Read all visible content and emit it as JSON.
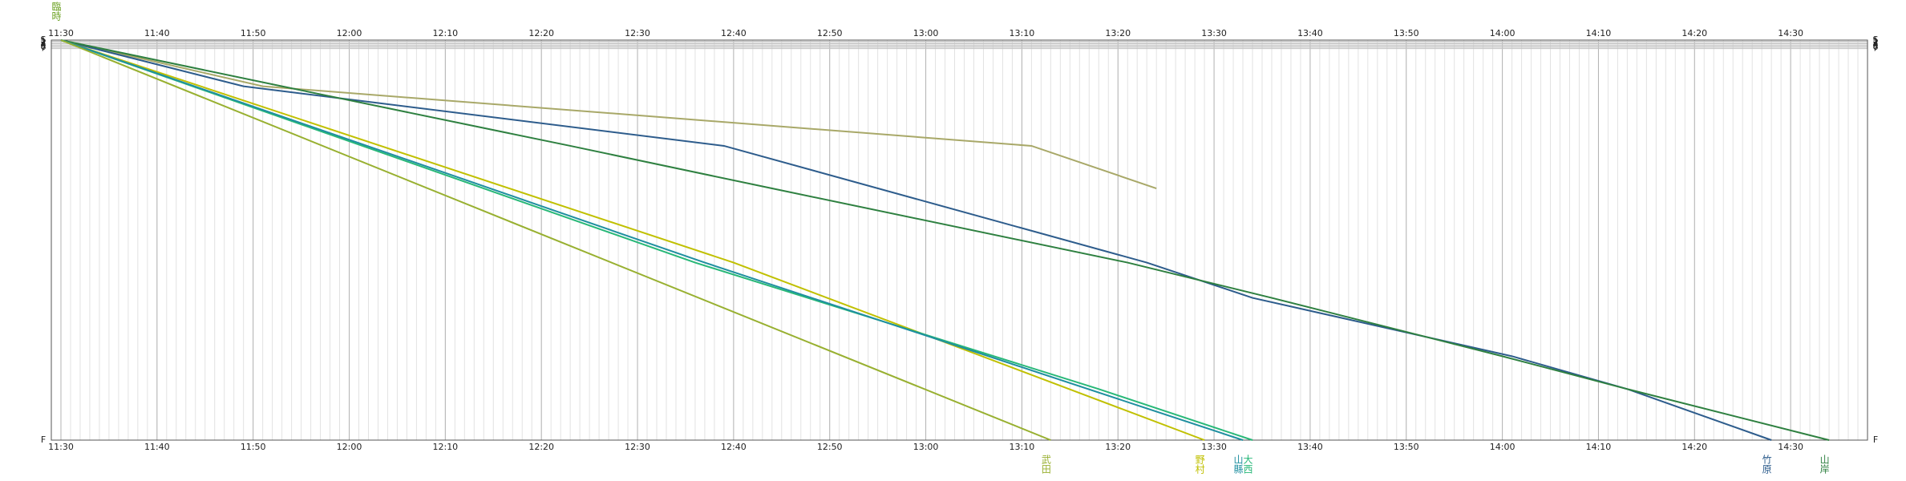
{
  "chart_data": {
    "type": "line",
    "annotation": "臨時",
    "xlim": [
      "11:29",
      "14:38"
    ],
    "xticks": [
      "11:30",
      "11:40",
      "11:50",
      "12:00",
      "12:10",
      "12:20",
      "12:30",
      "12:40",
      "12:50",
      "13:00",
      "13:10",
      "13:20",
      "13:30",
      "13:40",
      "13:50",
      "14:00",
      "14:10",
      "14:20",
      "14:30"
    ],
    "ylim": [
      0,
      329
    ],
    "yticks": [
      {
        "value": 0,
        "label": "S"
      },
      1,
      2,
      3,
      4,
      5,
      6,
      7,
      {
        "value": 329,
        "label": "F"
      }
    ],
    "grid": true,
    "series": [
      {
        "color": "#a8a868",
        "x": [
          "11:30",
          "11:51",
          "13:11",
          "13:24"
        ],
        "values": [
          0,
          38,
          87,
          122
        ]
      },
      {
        "name": "竹原",
        "color": "#2d5c8c",
        "x": [
          "11:30",
          "11:49",
          "12:39",
          "13:23",
          "13:34",
          "14:01",
          "14:13",
          "14:28"
        ],
        "values": [
          0,
          38,
          87,
          183,
          212,
          260,
          287,
          329
        ]
      },
      {
        "name": "山岸",
        "color": "#2e8040",
        "x": [
          "11:30",
          "11:53",
          "12:23",
          "12:44",
          "13:21",
          "13:36",
          "14:00",
          "14:13",
          "14:34"
        ],
        "values": [
          0,
          38,
          87,
          122,
          183,
          212,
          260,
          287,
          329
        ]
      },
      {
        "name": "野村",
        "color": "#c0c000",
        "x": [
          "11:30",
          "12:40",
          "13:29"
        ],
        "values": [
          0,
          183,
          329
        ]
      },
      {
        "name": "大西",
        "color": "#28b878",
        "x": [
          "11:30",
          "12:36",
          "13:18",
          "13:34"
        ],
        "values": [
          0,
          183,
          287,
          329
        ]
      },
      {
        "name": "山縣",
        "color": "#1f8fa0",
        "x": [
          "11:30",
          "12:37",
          "13:33"
        ],
        "values": [
          0,
          183,
          329
        ]
      },
      {
        "name": "武田",
        "color": "#98b030",
        "x": [
          "11:30",
          "13:13"
        ],
        "values": [
          0,
          329
        ]
      }
    ]
  }
}
